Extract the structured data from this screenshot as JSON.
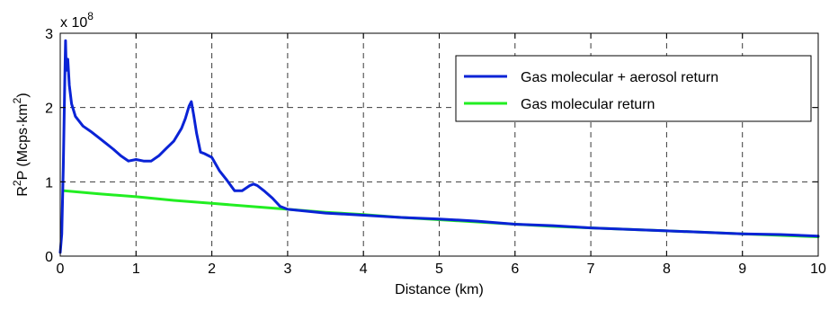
{
  "chart_data": {
    "type": "line",
    "xlabel": "Distance (km)",
    "ylabel": {
      "base": "R",
      "base_sup": "2",
      "middle": "P  (Mcps·km",
      "unit_sup": "2",
      "end": ")"
    },
    "y_multiplier": {
      "prefix": "x 10",
      "exponent": "8"
    },
    "xlim": [
      0,
      10
    ],
    "ylim": [
      0,
      3
    ],
    "x_ticks": [
      "0",
      "1",
      "2",
      "3",
      "4",
      "5",
      "6",
      "7",
      "8",
      "9",
      "10"
    ],
    "y_ticks": [
      "0",
      "1",
      "2",
      "3"
    ],
    "grid": true,
    "legend_position": "top-right",
    "colors": {
      "series_1": "#0a23d6",
      "series_2": "#22ee22"
    },
    "series": [
      {
        "name": "Gas molecular + aerosol return",
        "x": [
          0,
          0.02,
          0.04,
          0.06,
          0.07,
          0.08,
          0.1,
          0.12,
          0.15,
          0.2,
          0.3,
          0.4,
          0.5,
          0.6,
          0.7,
          0.8,
          0.9,
          1.0,
          1.1,
          1.2,
          1.3,
          1.4,
          1.5,
          1.6,
          1.65,
          1.7,
          1.73,
          1.76,
          1.8,
          1.85,
          1.9,
          2.0,
          2.1,
          2.2,
          2.3,
          2.4,
          2.5,
          2.55,
          2.6,
          2.7,
          2.8,
          2.9,
          3.0,
          3.5,
          4.0,
          4.5,
          5.0,
          5.5,
          6.0,
          6.5,
          7.0,
          7.5,
          8.0,
          8.5,
          9.0,
          9.5,
          10.0
        ],
        "y": [
          0.05,
          0.3,
          1.2,
          2.4,
          2.9,
          2.5,
          2.65,
          2.3,
          2.05,
          1.88,
          1.75,
          1.68,
          1.6,
          1.52,
          1.44,
          1.35,
          1.28,
          1.3,
          1.28,
          1.28,
          1.35,
          1.45,
          1.55,
          1.72,
          1.85,
          2.02,
          2.08,
          1.9,
          1.65,
          1.4,
          1.38,
          1.33,
          1.15,
          1.02,
          0.88,
          0.88,
          0.95,
          0.97,
          0.95,
          0.87,
          0.78,
          0.67,
          0.63,
          0.58,
          0.55,
          0.52,
          0.5,
          0.47,
          0.43,
          0.41,
          0.38,
          0.36,
          0.34,
          0.32,
          0.3,
          0.29,
          0.27
        ]
      },
      {
        "name": "Gas molecular return",
        "x": [
          0.05,
          0.5,
          1.0,
          1.5,
          2.0,
          2.5,
          3.0,
          3.5,
          4.0,
          4.5,
          5.0,
          5.5,
          6.0,
          6.5,
          7.0,
          7.5,
          8.0,
          8.5,
          9.0,
          9.5,
          10.0
        ],
        "y": [
          0.88,
          0.84,
          0.8,
          0.75,
          0.71,
          0.67,
          0.63,
          0.59,
          0.56,
          0.52,
          0.49,
          0.46,
          0.43,
          0.4,
          0.38,
          0.36,
          0.34,
          0.32,
          0.3,
          0.28,
          0.26
        ]
      }
    ]
  }
}
